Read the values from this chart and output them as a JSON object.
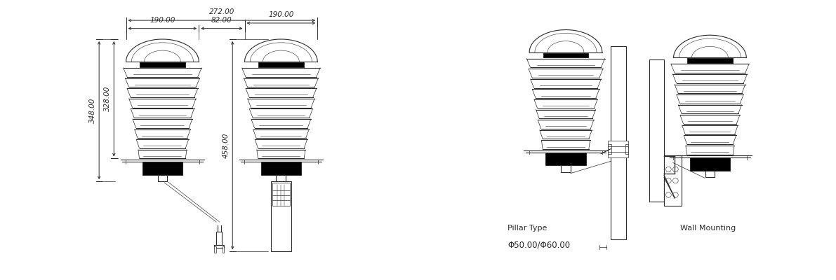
{
  "line_color": "#2a2a2a",
  "dim_color": "#2a2a2a",
  "lw": 0.8,
  "thin_lw": 0.5,
  "dim_272": "272.00",
  "dim_190": "190.00",
  "dim_82": "82.00",
  "dim_348": "348.00",
  "dim_328": "328.00",
  "dim_458": "458.00",
  "dim_190b": "190.00",
  "label_pillar": "Pillar Type",
  "label_wall": "Wall Mounting",
  "label_phi": "Φ50.00/Φ60.00"
}
